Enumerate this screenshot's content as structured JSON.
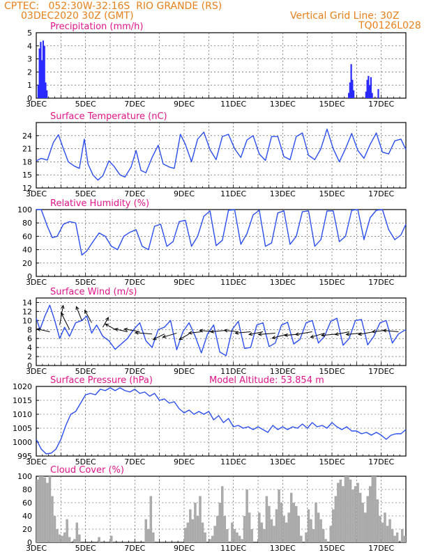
{
  "header": {
    "left_line1": "CPTEC:   052:30W-32:16S  RIO GRANDE (RS)",
    "left_line2": "03DEC2020 30Z (GMT)",
    "right_line1": "Vertical Grid Line: 30Z",
    "right_line2": "TQ0126L028"
  },
  "colors": {
    "header": "#e8801a",
    "title": "#e0158a",
    "line": "#2a4df0",
    "bars": "#2a2aff",
    "cloud": "#aaaaaa",
    "arrows": "#000000"
  },
  "x_tick_labels": [
    "3DEC",
    "5DEC",
    "7DEC",
    "9DEC",
    "11DEC",
    "13DEC",
    "15DEC",
    "17DEC"
  ],
  "x_range_days": [
    3,
    18
  ],
  "chart_data": [
    {
      "type": "bar",
      "title": "Precipitation (mm/h)",
      "ylim": [
        0,
        5
      ],
      "yticks": [
        0,
        1,
        2,
        3,
        4,
        5
      ],
      "days": [
        3.05,
        3.1,
        3.15,
        3.2,
        3.25,
        3.3,
        3.35,
        3.4,
        15.65,
        15.7,
        15.75,
        15.8,
        15.85,
        16.35,
        16.4,
        16.45,
        16.5,
        16.55,
        16.6,
        16.85
      ],
      "values": [
        1.0,
        3.8,
        4.3,
        2.9,
        4.4,
        4.0,
        1.2,
        0.6,
        0.4,
        1.2,
        2.6,
        1.4,
        0.6,
        0.5,
        1.4,
        1.7,
        1.0,
        1.6,
        0.4,
        0.7
      ]
    },
    {
      "type": "line",
      "title": "Surface Temperature (nC)",
      "ylim": [
        12,
        27
      ],
      "yticks": [
        12,
        15,
        18,
        21,
        24
      ],
      "x": [
        3.0,
        3.2,
        3.45,
        3.7,
        3.9,
        4.1,
        4.3,
        4.55,
        4.75,
        4.95,
        5.1,
        5.3,
        5.5,
        5.7,
        5.95,
        6.15,
        6.4,
        6.6,
        6.85,
        7.05,
        7.25,
        7.45,
        7.7,
        7.95,
        8.15,
        8.4,
        8.6,
        8.85,
        9.05,
        9.3,
        9.55,
        9.8,
        10.05,
        10.3,
        10.55,
        10.8,
        11.05,
        11.3,
        11.55,
        11.8,
        12.05,
        12.3,
        12.55,
        12.8,
        13.05,
        13.3,
        13.55,
        13.8,
        14.05,
        14.3,
        14.55,
        14.8,
        15.05,
        15.3,
        15.55,
        15.8,
        16.05,
        16.3,
        16.55,
        16.8,
        17.05,
        17.3,
        17.55,
        17.8,
        18.0
      ],
      "y": [
        18.2,
        18.8,
        18.4,
        22.5,
        24.2,
        21.0,
        18.0,
        17.0,
        16.5,
        23.2,
        17.5,
        15.0,
        13.8,
        14.8,
        18.2,
        17.0,
        15.0,
        14.5,
        16.8,
        20.6,
        16.0,
        15.5,
        19.0,
        21.8,
        17.5,
        16.8,
        16.5,
        24.3,
        22.0,
        18.0,
        23.2,
        24.8,
        20.8,
        18.5,
        23.8,
        24.3,
        21.0,
        19.0,
        23.0,
        24.0,
        19.8,
        18.3,
        23.8,
        23.8,
        19.2,
        18.5,
        23.8,
        24.6,
        19.5,
        18.5,
        21.0,
        25.5,
        21.0,
        18.0,
        21.0,
        24.5,
        20.6,
        18.8,
        22.0,
        24.6,
        20.2,
        19.8,
        22.8,
        23.2,
        20.8
      ]
    },
    {
      "type": "line",
      "title": "Relative Humidity (%)",
      "ylim": [
        0,
        100
      ],
      "yticks": [
        0,
        20,
        40,
        60,
        80,
        100
      ],
      "x": [
        3.0,
        3.2,
        3.45,
        3.65,
        3.85,
        4.1,
        4.35,
        4.6,
        4.85,
        5.05,
        5.3,
        5.55,
        5.8,
        6.05,
        6.3,
        6.55,
        6.8,
        7.05,
        7.3,
        7.55,
        7.8,
        8.05,
        8.3,
        8.55,
        8.8,
        9.05,
        9.3,
        9.55,
        9.8,
        10.05,
        10.3,
        10.55,
        10.8,
        11.05,
        11.3,
        11.55,
        11.8,
        12.05,
        12.3,
        12.55,
        12.8,
        13.05,
        13.3,
        13.55,
        13.8,
        14.05,
        14.3,
        14.55,
        14.8,
        15.05,
        15.3,
        15.55,
        15.8,
        16.05,
        16.3,
        16.55,
        16.8,
        17.05,
        17.3,
        17.55,
        17.8,
        18.0
      ],
      "y": [
        100,
        100,
        75,
        58,
        60,
        78,
        82,
        80,
        32,
        38,
        52,
        65,
        60,
        45,
        40,
        60,
        66,
        70,
        45,
        40,
        75,
        78,
        45,
        52,
        82,
        84,
        45,
        60,
        90,
        98,
        46,
        54,
        99,
        100,
        48,
        64,
        92,
        99,
        45,
        50,
        95,
        98,
        48,
        60,
        97,
        98,
        45,
        55,
        98,
        98,
        52,
        60,
        99,
        100,
        55,
        88,
        99,
        100,
        70,
        55,
        62,
        78
      ]
    },
    {
      "type": "line",
      "title": "Surface Wind (m/s)",
      "ylim": [
        0,
        15
      ],
      "yticks": [
        0,
        2,
        4,
        6,
        8,
        10,
        12,
        14
      ],
      "x": [
        3.0,
        3.15,
        3.35,
        3.55,
        3.75,
        3.95,
        4.15,
        4.35,
        4.6,
        4.85,
        5.05,
        5.25,
        5.45,
        5.7,
        5.95,
        6.2,
        6.45,
        6.7,
        6.95,
        7.2,
        7.45,
        7.7,
        7.95,
        8.2,
        8.45,
        8.7,
        8.95,
        9.2,
        9.45,
        9.7,
        9.95,
        10.2,
        10.45,
        10.7,
        10.95,
        11.2,
        11.45,
        11.7,
        11.95,
        12.2,
        12.45,
        12.7,
        12.95,
        13.2,
        13.45,
        13.7,
        13.95,
        14.2,
        14.45,
        14.7,
        14.95,
        15.2,
        15.45,
        15.7,
        15.95,
        16.2,
        16.45,
        16.7,
        16.95,
        17.2,
        17.45,
        17.7,
        18.0
      ],
      "y": [
        10.5,
        8.0,
        11.0,
        13.4,
        10.0,
        6.0,
        8.5,
        6.5,
        9.5,
        10.0,
        11.0,
        7.2,
        9.0,
        6.5,
        5.5,
        3.6,
        4.8,
        6.0,
        8.0,
        9.5,
        5.5,
        4.0,
        8.0,
        8.5,
        10.0,
        3.5,
        7.5,
        9.5,
        6.5,
        2.8,
        7.0,
        9.0,
        3.0,
        2.2,
        8.0,
        9.8,
        3.8,
        4.0,
        9.0,
        9.5,
        4.2,
        5.0,
        9.0,
        9.6,
        4.8,
        5.8,
        9.5,
        10.0,
        5.0,
        6.5,
        9.8,
        10.5,
        4.5,
        6.0,
        10.0,
        10.2,
        4.6,
        6.5,
        9.5,
        10.0,
        5.0,
        7.0,
        8.0
      ],
      "arrows_day": [
        3.55,
        3.95,
        4.35,
        4.85,
        5.25,
        5.7,
        6.2,
        6.7,
        7.2,
        7.7,
        8.2,
        8.7,
        9.2,
        9.7,
        10.2,
        10.7,
        11.2,
        11.7,
        12.2,
        12.7,
        13.2,
        13.7,
        14.2,
        14.7,
        15.2,
        15.7,
        16.2,
        16.7,
        17.2,
        17.7
      ],
      "arrows_speed": [
        7.5,
        9.0,
        8.0,
        10.0,
        9.5,
        8.5,
        8.0,
        7.5,
        7.5,
        7.0,
        7.0,
        7.2,
        7.0,
        7.5,
        7.5,
        7.8,
        7.5,
        7.5,
        7.5,
        7.2,
        7.0,
        7.0,
        7.5,
        7.2,
        7.0,
        7.5,
        7.2,
        7.5,
        7.8,
        7.5
      ],
      "arrows_dx": [
        -18,
        5,
        -12,
        -8,
        -10,
        8,
        -14,
        -18,
        -22,
        -24,
        -16,
        -20,
        -14,
        -18,
        -20,
        -22,
        -20,
        -22,
        -20,
        -24,
        -22,
        -22,
        -24,
        -20,
        -22,
        -20,
        -22,
        -22,
        -20,
        -22
      ],
      "arrows_dy": [
        -4,
        -28,
        -24,
        -20,
        -18,
        -14,
        -8,
        -4,
        -4,
        -2,
        8,
        6,
        8,
        2,
        -2,
        2,
        -2,
        2,
        4,
        2,
        6,
        2,
        4,
        6,
        2,
        4,
        2,
        4,
        2,
        -2
      ]
    },
    {
      "type": "line",
      "title": "Surface Pressure (hPa)",
      "annotation": "Model Altitude: 53.854 m",
      "ylim": [
        995,
        1020
      ],
      "yticks": [
        995,
        1000,
        1005,
        1010,
        1015,
        1020
      ],
      "x": [
        3.0,
        3.2,
        3.4,
        3.6,
        3.8,
        4.0,
        4.2,
        4.4,
        4.6,
        4.8,
        5.0,
        5.2,
        5.4,
        5.6,
        5.8,
        6.0,
        6.2,
        6.4,
        6.6,
        6.8,
        7.0,
        7.2,
        7.4,
        7.6,
        7.8,
        8.0,
        8.2,
        8.4,
        8.6,
        8.8,
        9.0,
        9.2,
        9.4,
        9.6,
        9.8,
        10.0,
        10.2,
        10.4,
        10.6,
        10.8,
        11.0,
        11.2,
        11.4,
        11.6,
        11.8,
        12.0,
        12.2,
        12.4,
        12.6,
        12.8,
        13.0,
        13.2,
        13.4,
        13.6,
        13.8,
        14.0,
        14.2,
        14.4,
        14.6,
        14.8,
        15.0,
        15.2,
        15.4,
        15.6,
        15.8,
        16.0,
        16.2,
        16.4,
        16.6,
        16.8,
        17.0,
        17.2,
        17.4,
        17.6,
        17.8,
        18.0
      ],
      "y": [
        1001,
        997.5,
        995.8,
        996.0,
        997.5,
        1001,
        1006,
        1010,
        1011,
        1014,
        1017,
        1017.5,
        1017,
        1019,
        1018.5,
        1019.5,
        1018.5,
        1019.5,
        1018.5,
        1018,
        1019,
        1017.5,
        1018,
        1016.5,
        1017.5,
        1015,
        1015.5,
        1014,
        1014.5,
        1012,
        1010.5,
        1011.5,
        1010,
        1011,
        1010,
        1011,
        1008,
        1009.5,
        1007,
        1008.5,
        1005.5,
        1006,
        1005,
        1005.5,
        1004.5,
        1005.5,
        1004.5,
        1003.5,
        1006,
        1004.5,
        1005.5,
        1004.5,
        1005.5,
        1005,
        1006.5,
        1005,
        1007,
        1005.5,
        1006,
        1005,
        1007,
        1005.5,
        1004.5,
        1005.5,
        1004,
        1004,
        1003,
        1003.5,
        1002.5,
        1003.5,
        1002.5,
        1001,
        1002.5,
        1003,
        1003,
        1004.5
      ]
    },
    {
      "type": "bar",
      "title": "Cloud Cover (%)",
      "ylim": [
        0,
        100
      ],
      "yticks": [
        0,
        20,
        40,
        60,
        80,
        100
      ],
      "days": [
        3.0,
        3.1,
        3.2,
        3.3,
        3.4,
        3.5,
        3.6,
        3.7,
        3.8,
        3.9,
        4.0,
        4.1,
        4.2,
        4.3,
        4.4,
        4.5,
        4.6,
        4.7,
        4.8,
        4.9,
        5.0,
        5.1,
        5.2,
        5.3,
        5.4,
        5.5,
        5.6,
        5.7,
        5.8,
        5.9,
        6.0,
        6.1,
        6.2,
        6.3,
        6.4,
        6.5,
        6.6,
        6.7,
        6.8,
        6.9,
        7.0,
        7.1,
        7.2,
        7.3,
        7.4,
        7.5,
        7.6,
        7.7,
        7.8,
        7.9,
        8.0,
        8.1,
        8.2,
        8.3,
        8.4,
        8.5,
        8.6,
        8.7,
        8.8,
        8.9,
        9.0,
        9.1,
        9.2,
        9.3,
        9.4,
        9.5,
        9.6,
        9.7,
        9.8,
        9.9,
        10.0,
        10.1,
        10.2,
        10.3,
        10.4,
        10.5,
        10.6,
        10.7,
        10.8,
        10.9,
        11.0,
        11.1,
        11.2,
        11.3,
        11.4,
        11.5,
        11.6,
        11.7,
        11.8,
        11.9,
        12.0,
        12.1,
        12.2,
        12.3,
        12.4,
        12.5,
        12.6,
        12.7,
        12.8,
        12.9,
        13.0,
        13.1,
        13.2,
        13.3,
        13.4,
        13.5,
        13.6,
        13.7,
        13.8,
        13.9,
        14.0,
        14.1,
        14.2,
        14.3,
        14.4,
        14.5,
        14.6,
        14.7,
        14.8,
        14.9,
        15.0,
        15.1,
        15.2,
        15.3,
        15.4,
        15.5,
        15.6,
        15.7,
        15.8,
        15.9,
        16.0,
        16.1,
        16.2,
        16.3,
        16.4,
        16.5,
        16.6,
        16.7,
        16.8,
        16.9,
        17.0,
        17.1,
        17.2,
        17.3,
        17.4,
        17.5,
        17.6,
        17.7,
        17.8,
        17.9
      ],
      "values": [
        95,
        100,
        100,
        98,
        90,
        100,
        70,
        40,
        20,
        12,
        10,
        15,
        35,
        8,
        0,
        5,
        30,
        12,
        0,
        0,
        0,
        0,
        0,
        0,
        0,
        8,
        0,
        0,
        0,
        0,
        10,
        0,
        0,
        0,
        0,
        0,
        0,
        0,
        0,
        0,
        0,
        0,
        0,
        0,
        35,
        20,
        70,
        15,
        0,
        0,
        0,
        0,
        0,
        0,
        0,
        0,
        0,
        0,
        0,
        0,
        22,
        30,
        50,
        35,
        60,
        40,
        70,
        30,
        15,
        0,
        5,
        10,
        25,
        40,
        60,
        85,
        40,
        20,
        0,
        30,
        20,
        15,
        10,
        5,
        40,
        80,
        45,
        20,
        0,
        0,
        45,
        30,
        20,
        70,
        55,
        35,
        25,
        50,
        80,
        60,
        40,
        30,
        45,
        75,
        60,
        55,
        40,
        10,
        0,
        15,
        50,
        35,
        20,
        60,
        45,
        35,
        20,
        5,
        0,
        25,
        50,
        70,
        90,
        95,
        85,
        100,
        100,
        95,
        80,
        85,
        90,
        75,
        60,
        45,
        70,
        85,
        100,
        100,
        65,
        40,
        30,
        45,
        25,
        35,
        20,
        10,
        15,
        0,
        20,
        10
      ]
    }
  ]
}
